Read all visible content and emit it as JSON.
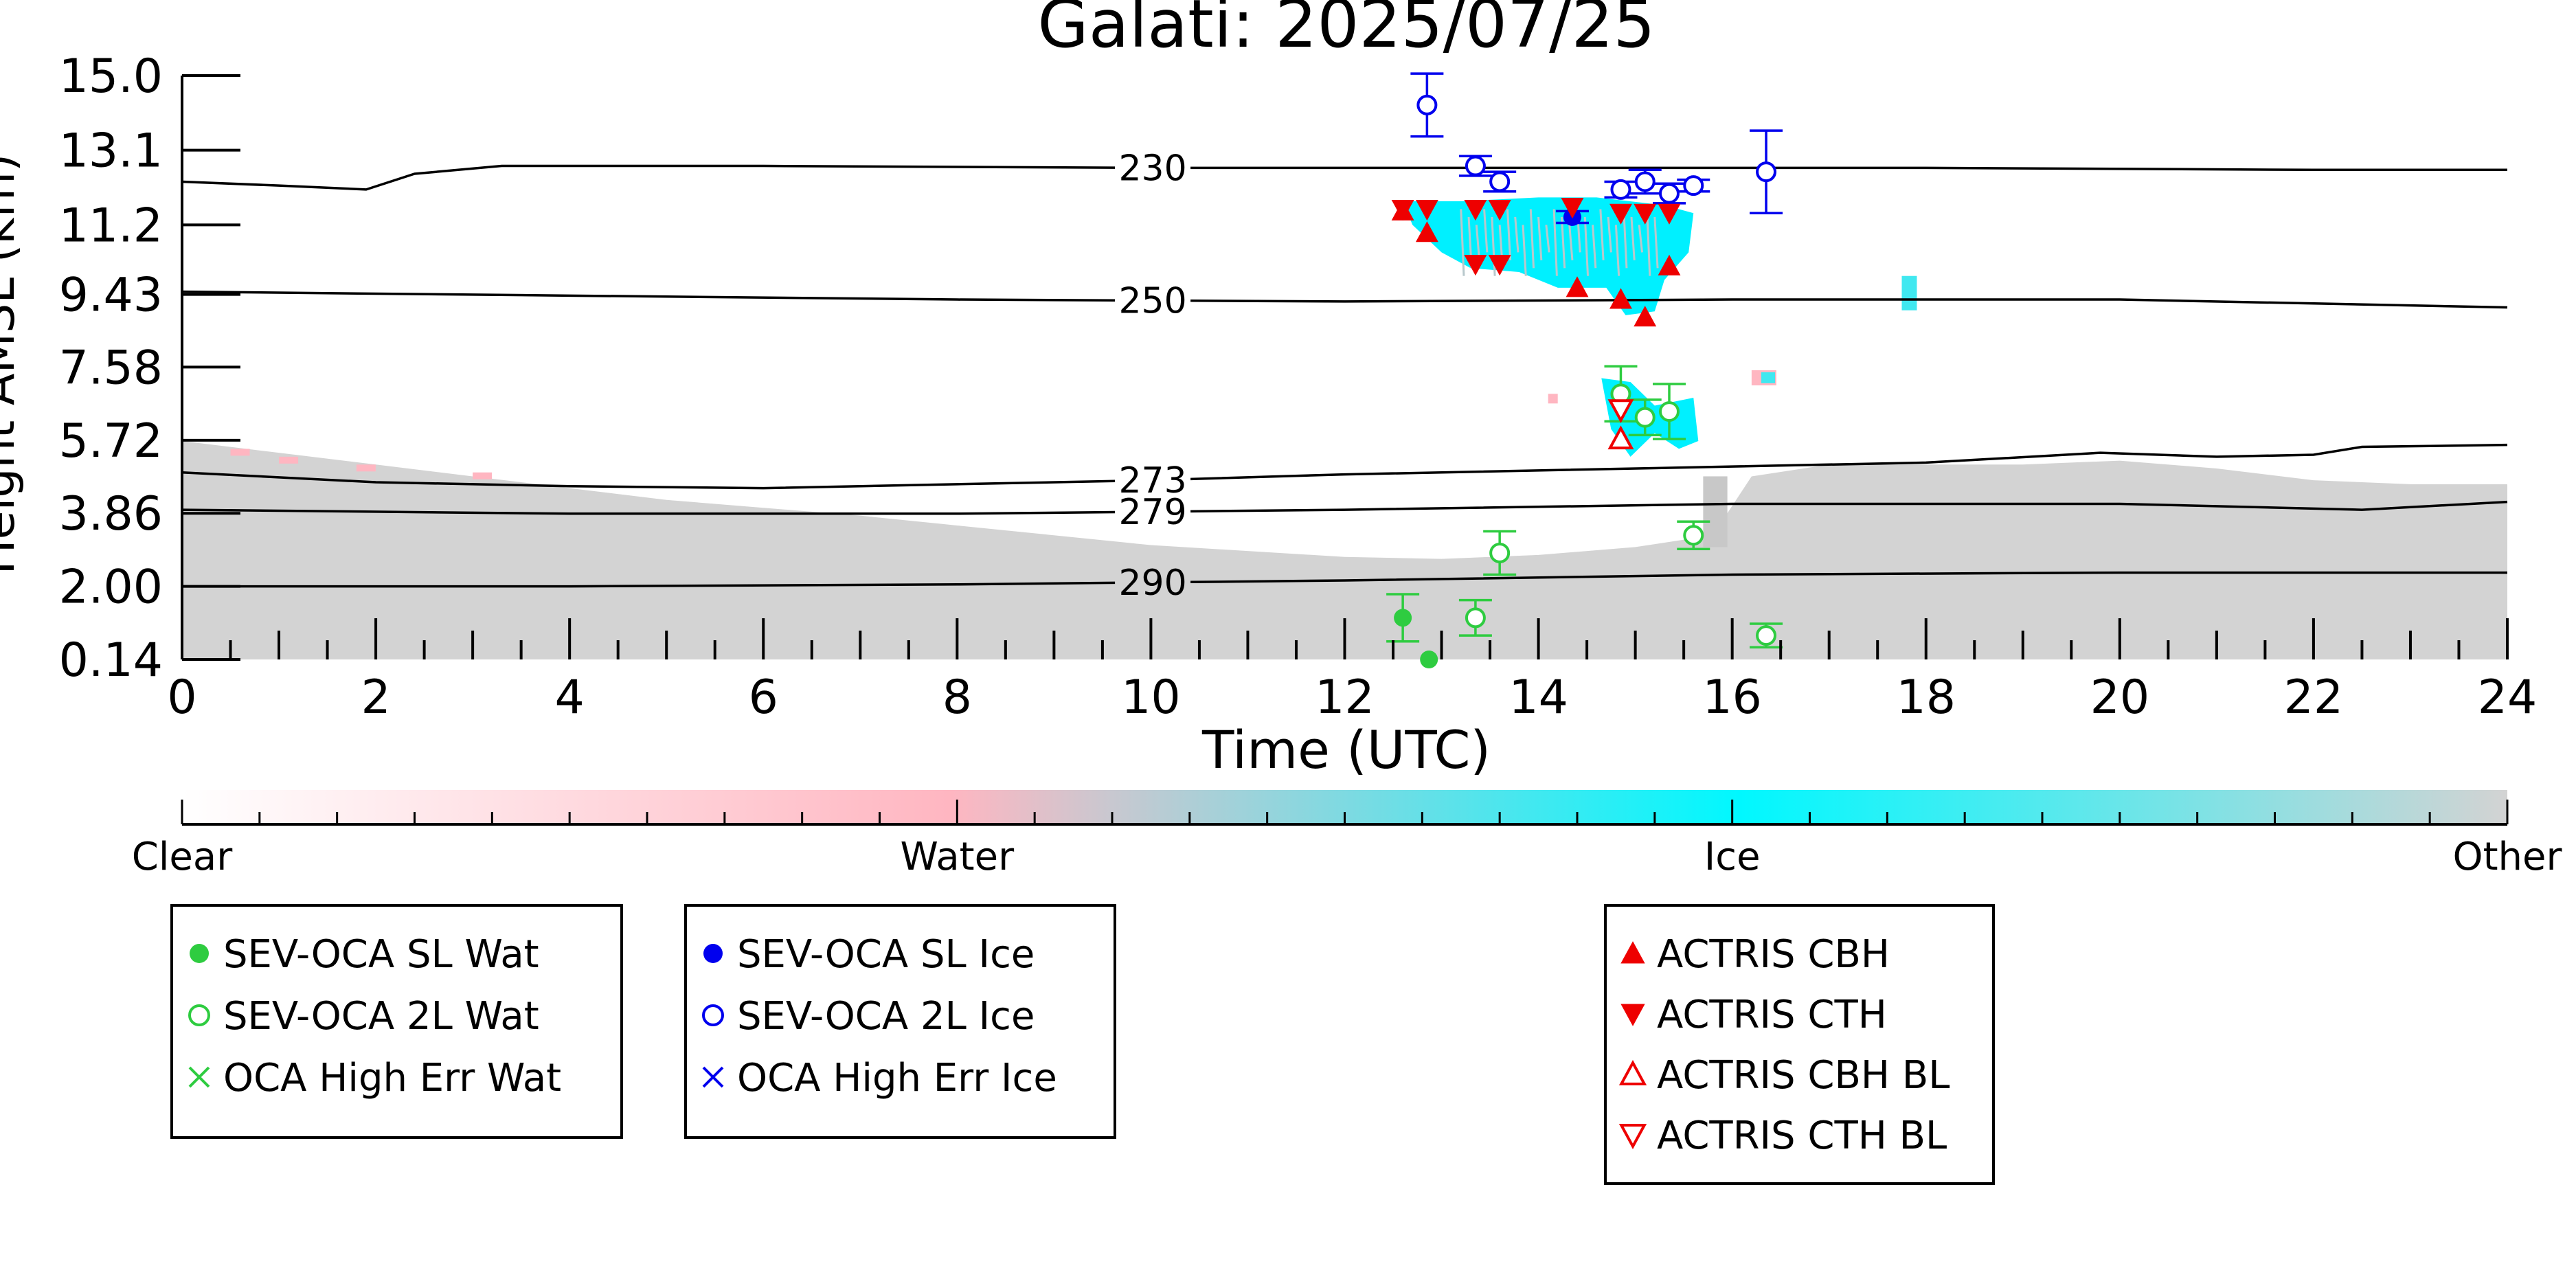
{
  "chart_data": {
    "type": "scatter",
    "title": "Galati: 2025/07/25",
    "xlabel": "Time (UTC)",
    "ylabel": "Height AMSL (km)",
    "xlim": [
      0,
      24
    ],
    "ylim": [
      0.14,
      15.0
    ],
    "x_ticks": [
      "0",
      "2",
      "4",
      "6",
      "8",
      "10",
      "12",
      "14",
      "16",
      "18",
      "20",
      "22",
      "24"
    ],
    "y_ticks": [
      "0.14",
      "2.00",
      "3.86",
      "5.72",
      "7.58",
      "9.43",
      "11.2",
      "13.1",
      "15.0"
    ],
    "y_tick_values": [
      0.14,
      2.0,
      3.86,
      5.72,
      7.58,
      9.43,
      11.2,
      13.1,
      15.0
    ],
    "grid": false,
    "colorbar": {
      "labels": [
        "Clear",
        "Water",
        "Ice",
        "Other"
      ],
      "colors": [
        "#ffffff",
        "#ffb6c1",
        "#00ffff",
        "#d3d3d3"
      ]
    },
    "contours": [
      {
        "label": "230",
        "label_x": 9.7,
        "points": [
          [
            0,
            12.3
          ],
          [
            1.0,
            12.2
          ],
          [
            1.9,
            12.1
          ],
          [
            2.4,
            12.5
          ],
          [
            3.3,
            12.7
          ],
          [
            6,
            12.7
          ],
          [
            10,
            12.65
          ],
          [
            14,
            12.65
          ],
          [
            18,
            12.65
          ],
          [
            22,
            12.6
          ],
          [
            24,
            12.6
          ]
        ]
      },
      {
        "label": "250",
        "label_x": 9.7,
        "points": [
          [
            0,
            9.5
          ],
          [
            4,
            9.4
          ],
          [
            8,
            9.3
          ],
          [
            12,
            9.25
          ],
          [
            16,
            9.3
          ],
          [
            20,
            9.3
          ],
          [
            24,
            9.1
          ]
        ]
      },
      {
        "label": "273",
        "label_x": 9.7,
        "points": [
          [
            0,
            4.9
          ],
          [
            2,
            4.65
          ],
          [
            4,
            4.55
          ],
          [
            6,
            4.5
          ],
          [
            8,
            4.6
          ],
          [
            10,
            4.7
          ],
          [
            12,
            4.85
          ],
          [
            16,
            5.05
          ],
          [
            18,
            5.15
          ],
          [
            19.8,
            5.4
          ],
          [
            21,
            5.3
          ],
          [
            22,
            5.35
          ],
          [
            22.5,
            5.55
          ],
          [
            24,
            5.6
          ]
        ]
      },
      {
        "label": "279",
        "label_x": 9.7,
        "points": [
          [
            0,
            3.95
          ],
          [
            4,
            3.85
          ],
          [
            8,
            3.85
          ],
          [
            12,
            3.95
          ],
          [
            16,
            4.1
          ],
          [
            20,
            4.1
          ],
          [
            22.5,
            3.95
          ],
          [
            24,
            4.15
          ]
        ]
      },
      {
        "label": "290",
        "label_x": 9.7,
        "points": [
          [
            0,
            2.0
          ],
          [
            4,
            2.0
          ],
          [
            8,
            2.05
          ],
          [
            12,
            2.15
          ],
          [
            16,
            2.3
          ],
          [
            20,
            2.35
          ],
          [
            24,
            2.35
          ]
        ]
      }
    ],
    "series": [
      {
        "name": "SEV-OCA SL Wat",
        "marker": "filled-circle",
        "color": "#2ecc40",
        "points": [
          {
            "x": 12.6,
            "y": 1.2,
            "err": 0.6
          },
          {
            "x": 12.87,
            "y": 0.14,
            "err": 0
          }
        ]
      },
      {
        "name": "SEV-OCA 2L Wat",
        "marker": "open-circle",
        "color": "#2ecc40",
        "points": [
          {
            "x": 13.6,
            "y": 2.85,
            "err": 0.55
          },
          {
            "x": 13.35,
            "y": 1.2,
            "err": 0.45
          },
          {
            "x": 14.85,
            "y": 6.9,
            "err": 0.7
          },
          {
            "x": 15.1,
            "y": 6.3,
            "err": 0.45
          },
          {
            "x": 15.35,
            "y": 6.45,
            "err": 0.7
          },
          {
            "x": 15.6,
            "y": 3.3,
            "err": 0.35
          },
          {
            "x": 16.35,
            "y": 0.75,
            "err": 0.3
          }
        ]
      },
      {
        "name": "OCA High Err Wat",
        "marker": "x",
        "color": "#2ecc40",
        "points": []
      },
      {
        "name": "SEV-OCA SL Ice",
        "marker": "filled-circle",
        "color": "#0000ee",
        "points": [
          {
            "x": 14.35,
            "y": 11.4,
            "err": 0.15
          }
        ]
      },
      {
        "name": "SEV-OCA 2L Ice",
        "marker": "open-circle",
        "color": "#0000ee",
        "points": [
          {
            "x": 12.85,
            "y": 14.25,
            "err": 0.8
          },
          {
            "x": 13.35,
            "y": 12.7,
            "err": 0.25
          },
          {
            "x": 13.6,
            "y": 12.3,
            "err": 0.25
          },
          {
            "x": 14.85,
            "y": 12.1,
            "err": 0.2
          },
          {
            "x": 15.1,
            "y": 12.3,
            "err": 0.3
          },
          {
            "x": 15.35,
            "y": 12.0,
            "err": 0.25
          },
          {
            "x": 15.6,
            "y": 12.2,
            "err": 0.15
          },
          {
            "x": 16.35,
            "y": 12.55,
            "err": 1.05
          }
        ]
      },
      {
        "name": "OCA High Err Ice",
        "marker": "x",
        "color": "#0000ee",
        "points": []
      },
      {
        "name": "ACTRIS CBH",
        "marker": "triangle-up",
        "color": "#ee0000",
        "points": [
          {
            "x": 12.6,
            "y": 11.55
          },
          {
            "x": 12.85,
            "y": 11.0
          },
          {
            "x": 14.85,
            "y": 9.3
          },
          {
            "x": 15.1,
            "y": 8.85
          },
          {
            "x": 15.35,
            "y": 10.15
          },
          {
            "x": 14.4,
            "y": 9.6
          }
        ]
      },
      {
        "name": "ACTRIS CTH",
        "marker": "triangle-down",
        "color": "#ee0000",
        "points": [
          {
            "x": 12.6,
            "y": 11.6
          },
          {
            "x": 12.85,
            "y": 11.6
          },
          {
            "x": 13.35,
            "y": 11.6
          },
          {
            "x": 13.6,
            "y": 11.6
          },
          {
            "x": 14.35,
            "y": 11.65
          },
          {
            "x": 14.85,
            "y": 11.5
          },
          {
            "x": 15.1,
            "y": 11.5
          },
          {
            "x": 15.35,
            "y": 11.5
          },
          {
            "x": 13.35,
            "y": 10.2
          },
          {
            "x": 13.6,
            "y": 10.2
          }
        ]
      },
      {
        "name": "ACTRIS CBH BL",
        "marker": "open-triangle-up",
        "color": "#ee0000",
        "points": [
          {
            "x": 14.85,
            "y": 5.75
          }
        ]
      },
      {
        "name": "ACTRIS CTH BL",
        "marker": "open-triangle-down",
        "color": "#ee0000",
        "points": [
          {
            "x": 14.85,
            "y": 6.5
          }
        ]
      }
    ],
    "legend_boxes": [
      {
        "placement": "bottom-left",
        "entries": [
          "SEV-OCA SL Wat",
          "SEV-OCA 2L Wat",
          "OCA High Err Wat"
        ]
      },
      {
        "placement": "bottom-center-left",
        "entries": [
          "SEV-OCA SL Ice",
          "SEV-OCA 2L Ice",
          "OCA High Err Ice"
        ]
      },
      {
        "placement": "bottom-center-right",
        "entries": [
          "ACTRIS CBH",
          "ACTRIS CTH",
          "ACTRIS CBH BL",
          "ACTRIS CTH BL"
        ]
      }
    ]
  }
}
